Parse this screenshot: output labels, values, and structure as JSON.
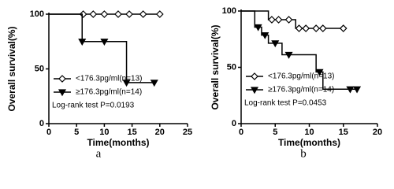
{
  "chart_data": [
    {
      "type": "step",
      "caption": "a",
      "xlabel": "Time(months)",
      "ylabel": "Overall survival(%)",
      "annotation": "Log-rank test P=0.0193",
      "xlim": [
        0,
        25
      ],
      "ylim": [
        0,
        100
      ],
      "xticks": [
        0,
        5,
        10,
        15,
        20,
        25
      ],
      "yticks": [
        0,
        50,
        100
      ],
      "series": [
        {
          "name": "<176.3pg/ml(n=13)",
          "color": "#000000",
          "marker": "diamond",
          "x": [
            0,
            20
          ],
          "values": [
            100,
            100
          ],
          "censor_x": [
            6.2,
            8,
            10,
            12.5,
            14.5,
            17,
            20
          ],
          "censor_values": [
            100,
            100,
            100,
            100,
            100,
            100,
            100
          ]
        },
        {
          "name": "≥176.3pg/ml(n=14)",
          "color": "#000000",
          "marker": "triangle-down",
          "x": [
            0,
            6,
            6,
            14,
            14,
            19
          ],
          "values": [
            100,
            100,
            75,
            75,
            37.5,
            37.5
          ],
          "censor_x": [
            6,
            10,
            14,
            19
          ],
          "censor_values": [
            75,
            75,
            37.5,
            37.5
          ]
        }
      ]
    },
    {
      "type": "step",
      "caption": "b",
      "xlabel": "Time(months)",
      "ylabel": "Overall survival(%)",
      "annotation": "Log-rank test P=0.0453",
      "xlim": [
        0,
        20
      ],
      "ylim": [
        0,
        100
      ],
      "xticks": [
        0,
        5,
        10,
        15,
        20
      ],
      "yticks": [
        0,
        50,
        100
      ],
      "series": [
        {
          "name": "<176.3pg/ml(n=13)",
          "color": "#000000",
          "marker": "diamond",
          "x": [
            0,
            4,
            4,
            8,
            8,
            15
          ],
          "values": [
            100,
            100,
            92.3,
            92.3,
            84.6,
            84.6
          ],
          "censor_x": [
            4.5,
            5.5,
            7,
            8.5,
            9.5,
            11,
            12,
            15
          ],
          "censor_values": [
            92.3,
            92.3,
            92.3,
            84.6,
            84.6,
            84.6,
            84.6,
            84.6
          ]
        },
        {
          "name": "≥176.3pg/ml(n=14)",
          "color": "#000000",
          "marker": "triangle-down",
          "x": [
            0,
            2,
            2,
            3,
            3,
            4,
            4,
            6,
            6,
            11,
            11,
            12,
            12,
            17
          ],
          "values": [
            100,
            100,
            85.7,
            85.7,
            78.6,
            78.6,
            71.4,
            71.4,
            61.2,
            61.2,
            45.9,
            45.9,
            30.6,
            30.6
          ],
          "censor_x": [
            2.5,
            3.5,
            5,
            7,
            11.5,
            16,
            17
          ],
          "censor_values": [
            85.7,
            78.6,
            71.4,
            61.2,
            45.9,
            30.6,
            30.6
          ]
        }
      ]
    }
  ]
}
